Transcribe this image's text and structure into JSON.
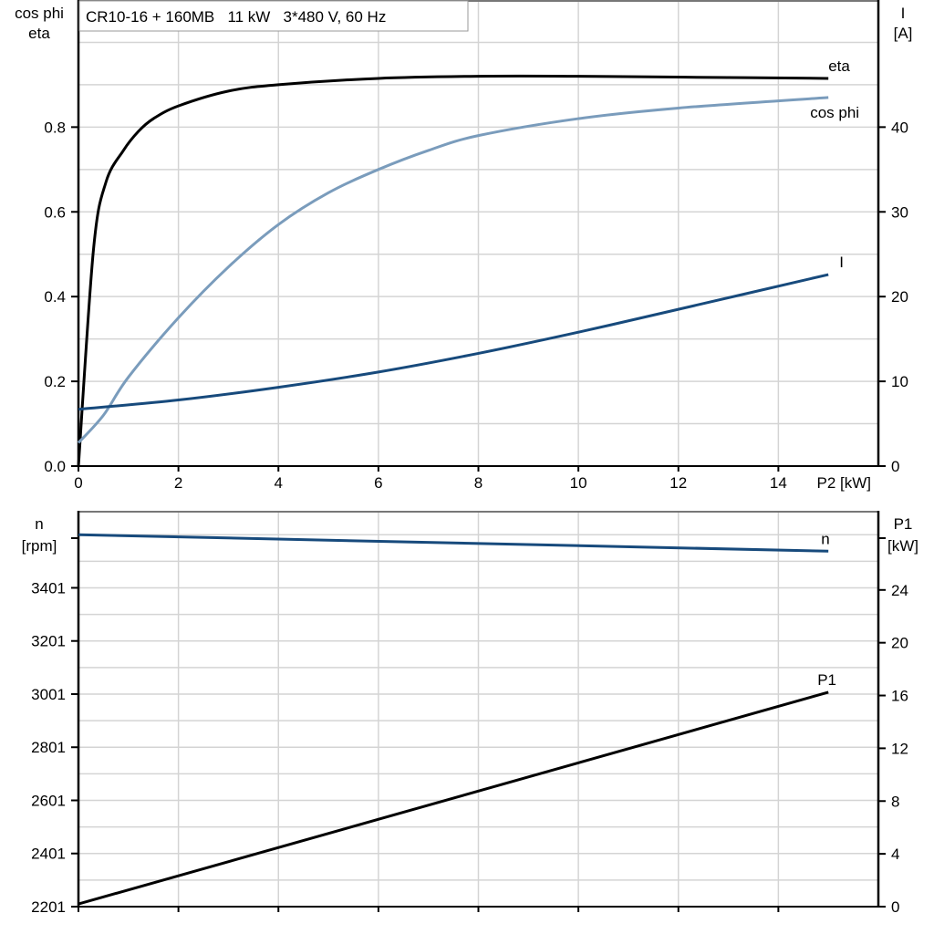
{
  "chart_data": [
    {
      "type": "line",
      "title": "CR10-16 + 160MB   11 kW   3*480 V, 60 Hz",
      "xlabel": "P2 [kW]",
      "ylabel_left": [
        "cos phi",
        "eta"
      ],
      "ylabel_right": [
        "I",
        "[A]"
      ],
      "xlim": [
        0,
        16
      ],
      "ylim_left": [
        0,
        1.1
      ],
      "ylim_right": [
        0,
        55
      ],
      "x_ticks": [
        0,
        2,
        4,
        6,
        8,
        10,
        12,
        14
      ],
      "y_ticks_left": [
        "0.0",
        "0.2",
        "0.4",
        "0.6",
        "0.8"
      ],
      "y_ticks_right": [
        "0",
        "10",
        "20",
        "30",
        "40"
      ],
      "grid": true,
      "series": [
        {
          "name": "eta",
          "axis": "left",
          "color": "#000000",
          "x": [
            0,
            0.3,
            0.55,
            0.9,
            1.2,
            1.5,
            2,
            3,
            4,
            6,
            8,
            10,
            12,
            15
          ],
          "y": [
            0,
            0.51,
            0.67,
            0.745,
            0.79,
            0.82,
            0.85,
            0.885,
            0.9,
            0.915,
            0.92,
            0.92,
            0.918,
            0.915
          ]
        },
        {
          "name": "cos phi",
          "axis": "left",
          "color": "#7a9cbc",
          "x": [
            0,
            0.5,
            1,
            2,
            3,
            4,
            5,
            6,
            7,
            8,
            10,
            12,
            15
          ],
          "y": [
            0.055,
            0.12,
            0.21,
            0.35,
            0.47,
            0.57,
            0.645,
            0.7,
            0.745,
            0.78,
            0.82,
            0.845,
            0.87
          ]
        },
        {
          "name": "I",
          "axis": "right",
          "color": "#174a7c",
          "x": [
            0,
            2,
            4,
            6,
            8,
            10,
            12,
            15
          ],
          "y": [
            6.7,
            7.8,
            9.3,
            11.1,
            13.3,
            15.8,
            18.5,
            22.6
          ]
        }
      ]
    },
    {
      "type": "line",
      "ylabel_left": [
        "n",
        "[rpm]"
      ],
      "ylabel_right": [
        "P1",
        "[kW]"
      ],
      "xlim": [
        0,
        16
      ],
      "ylim_left": [
        2201,
        3691
      ],
      "ylim_right": [
        0,
        30
      ],
      "y_ticks_left": [
        "2201",
        "2401",
        "2601",
        "2801",
        "3001",
        "3201",
        "3401"
      ],
      "y_ticks_right": [
        "0",
        "4",
        "8",
        "12",
        "16",
        "20",
        "24"
      ],
      "grid": true,
      "series": [
        {
          "name": "n",
          "axis": "left",
          "color": "#174a7c",
          "x": [
            0,
            15
          ],
          "y": [
            3601,
            3539
          ]
        },
        {
          "name": "P1",
          "axis": "right",
          "color": "#000000",
          "x": [
            0,
            15
          ],
          "y": [
            0.2,
            16.25
          ]
        }
      ]
    }
  ]
}
